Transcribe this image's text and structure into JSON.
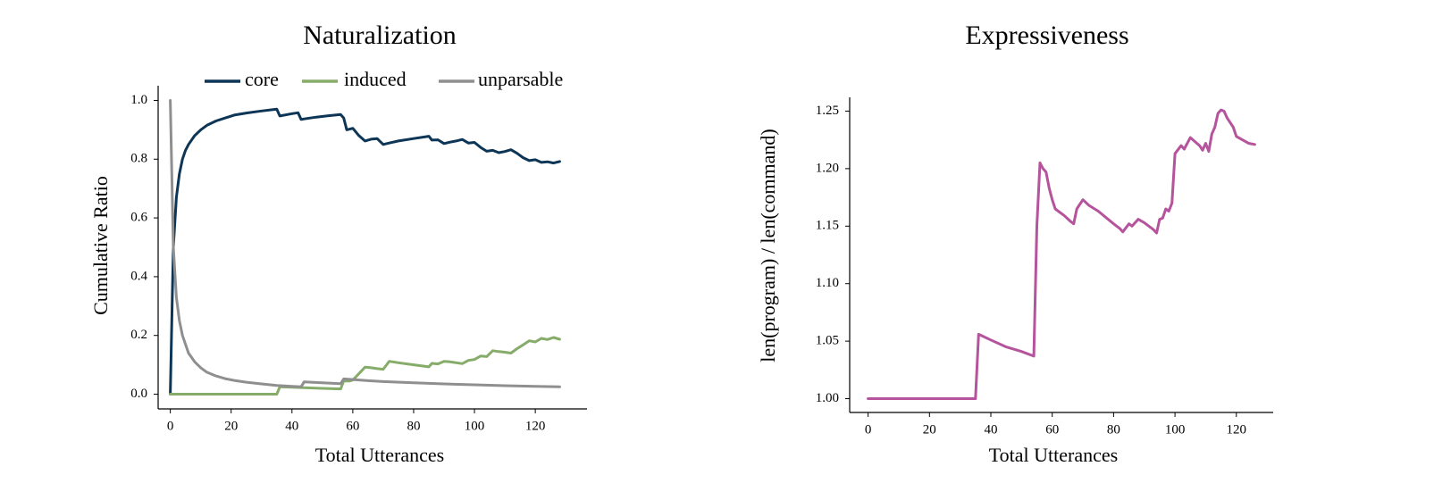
{
  "chart_data": [
    {
      "type": "line",
      "title": "Naturalization",
      "xlabel": "Total Utterances",
      "ylabel": "Cumulative Ratio",
      "xlim": [
        -4,
        137
      ],
      "ylim": [
        -0.05,
        1.05
      ],
      "xticks": [
        "0",
        "20",
        "40",
        "60",
        "80",
        "100",
        "120"
      ],
      "xtick_values": [
        0,
        20,
        40,
        60,
        80,
        100,
        120
      ],
      "yticks": [
        "0.0",
        "0.2",
        "0.4",
        "0.6",
        "0.8",
        "1.0"
      ],
      "ytick_values": [
        0,
        0.2,
        0.4,
        0.6,
        0.8,
        1.0
      ],
      "legend_position": "top",
      "series": [
        {
          "name": "core",
          "color": "#0d3556",
          "x": [
            0,
            1,
            2,
            3,
            4,
            5,
            6,
            8,
            10,
            12,
            15,
            18,
            21,
            25,
            30,
            35,
            36,
            40,
            42,
            43,
            44,
            48,
            52,
            56,
            57,
            58,
            60,
            62,
            64,
            66,
            68,
            70,
            72,
            75,
            80,
            85,
            86,
            88,
            90,
            92,
            94,
            96,
            98,
            100,
            102,
            104,
            106,
            108,
            110,
            112,
            114,
            116,
            118,
            120,
            122,
            124,
            126,
            128
          ],
          "y": [
            0.0,
            0.5,
            0.67,
            0.75,
            0.8,
            0.83,
            0.85,
            0.88,
            0.9,
            0.915,
            0.93,
            0.94,
            0.95,
            0.957,
            0.964,
            0.97,
            0.947,
            0.955,
            0.958,
            0.935,
            0.937,
            0.943,
            0.948,
            0.952,
            0.94,
            0.9,
            0.905,
            0.88,
            0.862,
            0.868,
            0.87,
            0.85,
            0.855,
            0.862,
            0.87,
            0.878,
            0.865,
            0.866,
            0.853,
            0.858,
            0.862,
            0.867,
            0.855,
            0.857,
            0.84,
            0.827,
            0.83,
            0.822,
            0.826,
            0.832,
            0.82,
            0.805,
            0.795,
            0.798,
            0.789,
            0.791,
            0.787,
            0.792
          ]
        },
        {
          "name": "induced",
          "color": "#86ac6a",
          "x": [
            0,
            2,
            5,
            10,
            15,
            20,
            25,
            30,
            35,
            36,
            42,
            44,
            50,
            56,
            57,
            59,
            60,
            62,
            64,
            66,
            68,
            70,
            72,
            75,
            80,
            85,
            86,
            88,
            90,
            92,
            94,
            96,
            98,
            100,
            102,
            104,
            106,
            108,
            110,
            112,
            114,
            116,
            118,
            120,
            122,
            124,
            126,
            128
          ],
          "y": [
            0.0,
            0.0,
            0.0,
            0.0,
            0.0,
            0.0,
            0.0,
            0.0,
            0.0,
            0.025,
            0.023,
            0.022,
            0.02,
            0.018,
            0.045,
            0.045,
            0.048,
            0.07,
            0.092,
            0.09,
            0.087,
            0.085,
            0.112,
            0.107,
            0.1,
            0.093,
            0.105,
            0.103,
            0.112,
            0.11,
            0.107,
            0.104,
            0.115,
            0.118,
            0.13,
            0.128,
            0.148,
            0.145,
            0.143,
            0.14,
            0.155,
            0.168,
            0.182,
            0.178,
            0.19,
            0.186,
            0.193,
            0.187
          ]
        },
        {
          "name": "unparsable",
          "color": "#8f8f8f",
          "x": [
            0,
            1,
            2,
            3,
            4,
            5,
            6,
            8,
            10,
            12,
            15,
            18,
            21,
            25,
            30,
            35,
            40,
            43,
            44,
            50,
            56,
            57,
            60,
            65,
            70,
            80,
            90,
            100,
            110,
            120,
            128
          ],
          "y": [
            1.0,
            0.5,
            0.33,
            0.25,
            0.2,
            0.17,
            0.14,
            0.11,
            0.09,
            0.075,
            0.062,
            0.053,
            0.047,
            0.041,
            0.035,
            0.03,
            0.027,
            0.025,
            0.042,
            0.039,
            0.036,
            0.052,
            0.05,
            0.046,
            0.043,
            0.039,
            0.035,
            0.032,
            0.029,
            0.027,
            0.025
          ]
        }
      ]
    },
    {
      "type": "line",
      "title": "Expressiveness",
      "xlabel": "Total Utterances",
      "ylabel": "len(program) / len(command)",
      "xlim": [
        -6,
        132
      ],
      "ylim": [
        0.988,
        1.262
      ],
      "xticks": [
        "0",
        "20",
        "40",
        "60",
        "80",
        "100",
        "120"
      ],
      "xtick_values": [
        0,
        20,
        40,
        60,
        80,
        100,
        120
      ],
      "yticks": [
        "1.00",
        "1.05",
        "1.10",
        "1.15",
        "1.20",
        "1.25"
      ],
      "ytick_values": [
        1.0,
        1.05,
        1.1,
        1.15,
        1.2,
        1.25
      ],
      "series": [
        {
          "name": "expressiveness",
          "color": "#b5539c",
          "x": [
            0,
            10,
            20,
            30,
            34,
            35,
            36,
            40,
            45,
            50,
            54,
            55,
            56,
            57,
            58,
            59,
            60,
            61,
            64,
            66,
            67,
            68,
            70,
            72,
            75,
            80,
            82,
            83,
            85,
            86,
            88,
            90,
            93,
            94,
            95,
            96,
            97,
            98,
            99,
            100,
            102,
            103,
            105,
            108,
            109,
            110,
            111,
            112,
            113,
            114,
            115,
            116,
            117,
            118,
            119,
            120,
            122,
            124,
            126
          ],
          "y": [
            1.0,
            1.0,
            1.0,
            1.0,
            1.0,
            1.0,
            1.056,
            1.051,
            1.045,
            1.041,
            1.037,
            1.15,
            1.205,
            1.2,
            1.197,
            1.183,
            1.173,
            1.165,
            1.159,
            1.154,
            1.152,
            1.165,
            1.173,
            1.168,
            1.163,
            1.152,
            1.148,
            1.145,
            1.152,
            1.15,
            1.156,
            1.153,
            1.147,
            1.144,
            1.156,
            1.157,
            1.165,
            1.163,
            1.17,
            1.213,
            1.22,
            1.217,
            1.227,
            1.22,
            1.216,
            1.222,
            1.215,
            1.23,
            1.236,
            1.248,
            1.251,
            1.25,
            1.244,
            1.24,
            1.236,
            1.228,
            1.225,
            1.222,
            1.221
          ]
        }
      ]
    }
  ]
}
